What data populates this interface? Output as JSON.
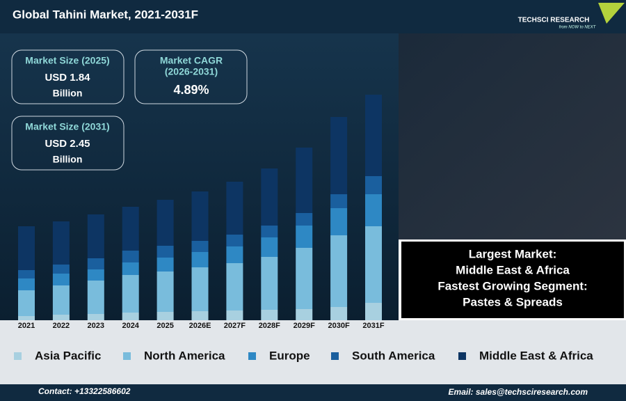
{
  "header": {
    "title": "Global Tahini Market, 2021-2031F",
    "logo": "TECHSCI RESEARCH",
    "tagline": "from NOW to NEXT"
  },
  "cards": [
    {
      "title": "Market Size (2025)",
      "value": "USD 1.84",
      "unit": "Billion"
    },
    {
      "title": "Market CAGR",
      "subtitle": "(2026-2031)",
      "value": "4.89%"
    },
    {
      "title": "Market Size (2031)",
      "value": "USD 2.45",
      "unit": "Billion"
    }
  ],
  "info": [
    "Largest Market:",
    "Middle East & Africa",
    "Fastest Growing Segment:",
    "Pastes & Spreads"
  ],
  "footer": {
    "contact": "Contact: +13322586602",
    "email": "Email: sales@techsciresearch.com"
  },
  "chart_data": {
    "type": "stacked_bar",
    "categories": [
      "2021",
      "2022",
      "2023",
      "2024",
      "2025",
      "2026E",
      "2027F",
      "2028F",
      "2029F",
      "2030F",
      "2031F"
    ],
    "ylim": [
      0,
      340
    ],
    "series": [
      {
        "name": "Asia Pacific",
        "color": "#a8d0e0",
        "values": [
          6,
          8,
          9,
          11,
          12,
          13,
          14,
          15,
          16,
          19,
          25
        ]
      },
      {
        "name": "North America",
        "color": "#79bcdc",
        "values": [
          37,
          42,
          48,
          54,
          58,
          63,
          68,
          76,
          88,
          103,
          110
        ]
      },
      {
        "name": "Europe",
        "color": "#2e88c4",
        "values": [
          17,
          17,
          16,
          18,
          20,
          22,
          24,
          28,
          32,
          39,
          46
        ]
      },
      {
        "name": "South America",
        "color": "#1a5f9e",
        "values": [
          12,
          13,
          16,
          17,
          17,
          16,
          17,
          17,
          18,
          20,
          26
        ]
      },
      {
        "name": "Middle East & Africa",
        "color": "#0d3563",
        "values": [
          63,
          62,
          63,
          63,
          66,
          71,
          76,
          82,
          94,
          111,
          117
        ]
      }
    ]
  }
}
